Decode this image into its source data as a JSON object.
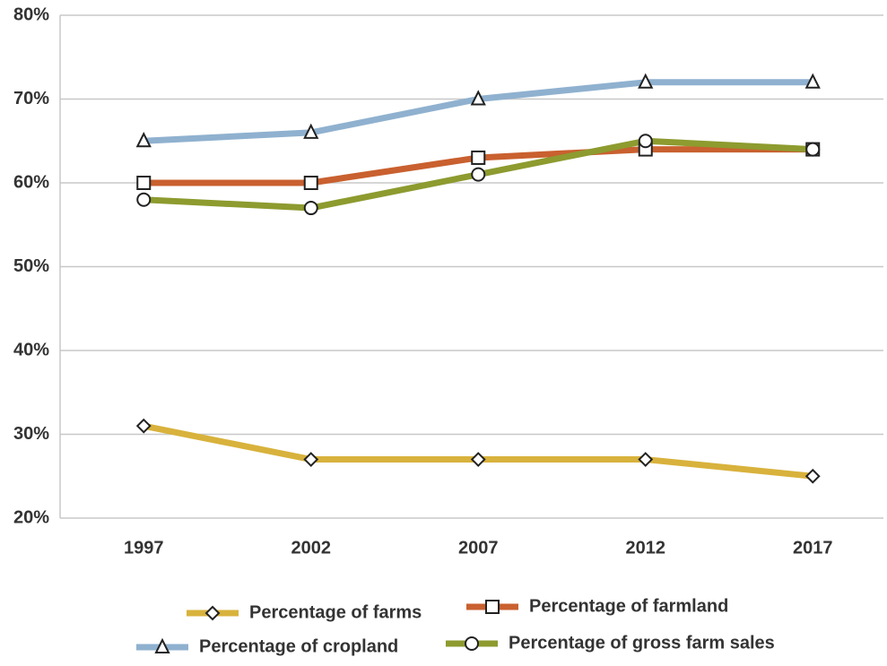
{
  "chart_data": {
    "type": "line",
    "categories": [
      "1997",
      "2002",
      "2007",
      "2012",
      "2017"
    ],
    "series": [
      {
        "name": "Percentage of farms",
        "color": "#d8b23c",
        "marker": "diamond",
        "values": [
          31,
          27,
          27,
          27,
          25
        ]
      },
      {
        "name": "Percentage of farmland",
        "color": "#c9602f",
        "marker": "square",
        "values": [
          60,
          60,
          63,
          64,
          64
        ]
      },
      {
        "name": "Percentage of cropland",
        "color": "#8fb1cf",
        "marker": "triangle",
        "values": [
          65,
          66,
          70,
          72,
          72
        ]
      },
      {
        "name": "Percentage of gross farm sales",
        "color": "#8d9b2f",
        "marker": "circle",
        "values": [
          58,
          57,
          61,
          65,
          64
        ]
      }
    ],
    "ylim": [
      20,
      80
    ],
    "yticks": [
      {
        "value": 20,
        "label": "20%"
      },
      {
        "value": 30,
        "label": "30%"
      },
      {
        "value": 40,
        "label": "40%"
      },
      {
        "value": 50,
        "label": "50%"
      },
      {
        "value": 60,
        "label": "60%"
      },
      {
        "value": 70,
        "label": "70%"
      },
      {
        "value": 80,
        "label": "80%"
      }
    ],
    "grid": true
  }
}
